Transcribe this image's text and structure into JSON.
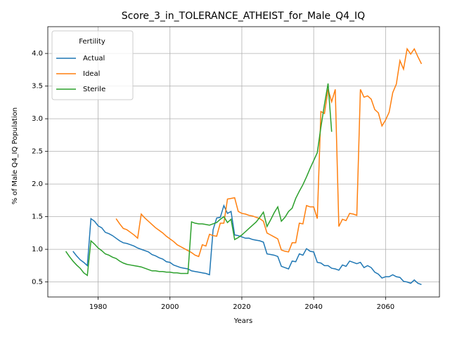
{
  "chart_data": {
    "type": "line",
    "title": "Score_3_in_TOLERANCE_ATHEIST_for_Male_Q4_IQ",
    "xlabel": "Years",
    "ylabel": "% of Male Q4_IQ Population",
    "legend_title": "Fertility",
    "legend": "upper left",
    "grid": true,
    "xlim": [
      1966,
      2075
    ],
    "ylim": [
      0.27,
      4.41
    ],
    "xticks": [
      1980,
      2000,
      2020,
      2040,
      2060
    ],
    "yticks": [
      {
        "value": 0.5,
        "label": "0.5"
      },
      {
        "value": 1,
        "label": "1.0"
      },
      {
        "value": 1.5,
        "label": "1.5"
      },
      {
        "value": 2,
        "label": "2.0"
      },
      {
        "value": 2.5,
        "label": "2.5"
      },
      {
        "value": 3,
        "label": "3.0"
      },
      {
        "value": 3.5,
        "label": "3.5"
      },
      {
        "value": 4,
        "label": "4.0"
      }
    ],
    "x": [
      1971,
      1972,
      1973,
      1974,
      1975,
      1976,
      1977,
      1978,
      1979,
      1980,
      1981,
      1982,
      1983,
      1984,
      1985,
      1986,
      1987,
      1988,
      1989,
      1990,
      1991,
      1992,
      1993,
      1994,
      1995,
      1996,
      1997,
      1998,
      1999,
      2000,
      2001,
      2002,
      2003,
      2004,
      2005,
      2006,
      2007,
      2008,
      2009,
      2010,
      2011,
      2012,
      2013,
      2014,
      2015,
      2016,
      2017,
      2018,
      2019,
      2020,
      2021,
      2022,
      2023,
      2024,
      2025,
      2026,
      2027,
      2028,
      2029,
      2030,
      2031,
      2032,
      2033,
      2034,
      2035,
      2036,
      2037,
      2038,
      2039,
      2040,
      2041,
      2042,
      2043,
      2044,
      2045,
      2046,
      2047,
      2048,
      2049,
      2050,
      2051,
      2052,
      2053,
      2054,
      2055,
      2056,
      2057,
      2058,
      2059,
      2060,
      2061,
      2062,
      2063,
      2064,
      2065,
      2066,
      2067,
      2068,
      2069,
      2070
    ],
    "series": [
      {
        "name": "Actual",
        "color": "#1f77b4",
        "values": [
          null,
          null,
          0.97,
          0.9,
          0.84,
          0.8,
          0.75,
          1.47,
          1.43,
          1.36,
          1.33,
          1.26,
          1.24,
          1.21,
          1.17,
          1.13,
          1.1,
          1.09,
          1.07,
          1.05,
          1.02,
          1.0,
          0.98,
          0.96,
          0.92,
          0.9,
          0.87,
          0.85,
          0.81,
          0.8,
          0.76,
          0.74,
          0.72,
          0.71,
          0.7,
          0.67,
          0.66,
          0.65,
          0.64,
          0.63,
          0.61,
          1.3,
          1.48,
          1.49,
          1.67,
          1.55,
          1.58,
          1.22,
          1.21,
          1.19,
          1.17,
          1.17,
          1.15,
          1.14,
          1.13,
          1.11,
          0.93,
          0.92,
          0.91,
          0.89,
          0.74,
          0.72,
          0.7,
          0.82,
          0.81,
          0.93,
          0.91,
          1.01,
          0.97,
          0.96,
          0.8,
          0.79,
          0.75,
          0.75,
          0.71,
          0.7,
          0.68,
          0.76,
          0.74,
          0.82,
          0.8,
          0.78,
          0.8,
          0.72,
          0.75,
          0.72,
          0.65,
          0.62,
          0.56,
          0.58,
          0.58,
          0.61,
          0.58,
          0.57,
          0.51,
          0.5,
          0.48,
          0.53,
          0.48,
          0.46
        ]
      },
      {
        "name": "Ideal",
        "color": "#ff7f0e",
        "values": [
          null,
          null,
          null,
          null,
          null,
          null,
          null,
          null,
          null,
          null,
          null,
          null,
          null,
          null,
          1.47,
          1.39,
          1.32,
          1.3,
          1.26,
          1.22,
          1.17,
          1.54,
          1.48,
          1.43,
          1.38,
          1.33,
          1.29,
          1.25,
          1.2,
          1.16,
          1.12,
          1.07,
          1.04,
          1.01,
          0.98,
          0.95,
          0.91,
          0.89,
          1.07,
          1.05,
          1.23,
          1.21,
          1.2,
          1.4,
          1.4,
          1.77,
          1.78,
          1.79,
          1.58,
          1.55,
          1.54,
          1.52,
          1.51,
          1.49,
          1.47,
          1.43,
          1.25,
          1.22,
          1.19,
          1.16,
          0.99,
          0.97,
          0.96,
          1.1,
          1.1,
          1.4,
          1.39,
          1.67,
          1.65,
          1.65,
          1.47,
          3.11,
          3.08,
          3.45,
          3.26,
          3.45,
          1.35,
          1.46,
          1.44,
          1.55,
          1.54,
          1.52,
          3.45,
          3.33,
          3.35,
          3.3,
          3.14,
          3.09,
          2.89,
          2.98,
          3.1,
          3.4,
          3.53,
          3.89,
          3.76,
          4.07,
          3.99,
          4.07,
          3.95,
          3.84
        ]
      },
      {
        "name": "Sterile",
        "color": "#2ca02c",
        "values": [
          0.97,
          0.89,
          0.82,
          0.76,
          0.71,
          0.64,
          0.6,
          1.13,
          1.08,
          1.02,
          0.98,
          0.93,
          0.91,
          0.88,
          0.86,
          0.82,
          0.79,
          0.77,
          0.76,
          0.75,
          0.74,
          0.73,
          0.71,
          0.69,
          0.67,
          0.67,
          0.66,
          0.66,
          0.65,
          0.65,
          0.64,
          0.64,
          0.63,
          0.63,
          0.63,
          1.42,
          1.4,
          1.39,
          1.39,
          1.38,
          1.37,
          1.39,
          1.41,
          1.46,
          1.5,
          1.41,
          1.46,
          1.15,
          1.18,
          1.22,
          1.27,
          1.32,
          1.37,
          1.42,
          1.49,
          1.57,
          1.35,
          1.45,
          1.56,
          1.65,
          1.43,
          1.49,
          1.58,
          1.63,
          1.78,
          1.89,
          1.99,
          2.11,
          2.24,
          2.36,
          2.48,
          2.87,
          3.22,
          3.54,
          2.8,
          null,
          null,
          null,
          null,
          null,
          null,
          null,
          null,
          null,
          null,
          null,
          null,
          null,
          null,
          null,
          null,
          null,
          null,
          null,
          null,
          null,
          null,
          null,
          null,
          null
        ]
      }
    ]
  }
}
